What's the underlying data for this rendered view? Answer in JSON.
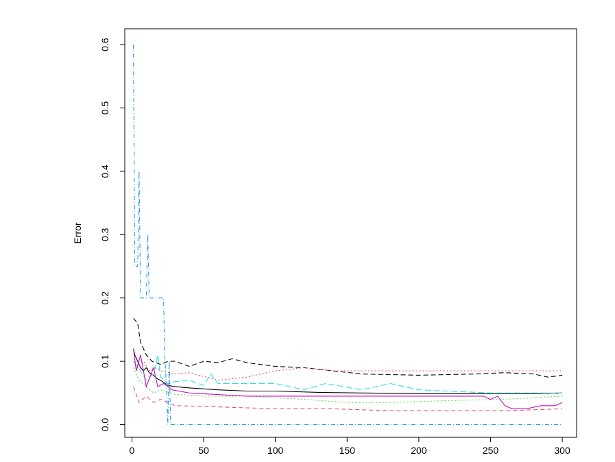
{
  "chart_data": {
    "type": "line",
    "title": "",
    "xlabel": "",
    "ylabel": "Error",
    "xlim": [
      -5,
      310
    ],
    "ylim": [
      -0.02,
      0.625
    ],
    "xticks": [
      0,
      50,
      100,
      150,
      200,
      250,
      300
    ],
    "yticks": [
      0.0,
      0.1,
      0.2,
      0.3,
      0.4,
      0.5,
      0.6
    ],
    "x_tick_labels": [
      "0",
      "50",
      "100",
      "150",
      "200",
      "250",
      "300"
    ],
    "y_tick_labels": [
      "0.0",
      "0.1",
      "0.2",
      "0.3",
      "0.4",
      "0.5",
      "0.6"
    ],
    "grid": false,
    "legend": "none",
    "series": [
      {
        "color": "#000000",
        "dash": "",
        "points": [
          [
            1,
            0.12
          ],
          [
            2,
            0.11
          ],
          [
            4,
            0.1
          ],
          [
            6,
            0.09
          ],
          [
            8,
            0.085
          ],
          [
            10,
            0.09
          ],
          [
            12,
            0.082
          ],
          [
            15,
            0.078
          ],
          [
            18,
            0.072
          ],
          [
            20,
            0.07
          ],
          [
            25,
            0.062
          ],
          [
            30,
            0.06
          ],
          [
            40,
            0.058
          ],
          [
            60,
            0.055
          ],
          [
            80,
            0.053
          ],
          [
            100,
            0.053
          ],
          [
            130,
            0.051
          ],
          [
            160,
            0.05
          ],
          [
            200,
            0.049
          ],
          [
            250,
            0.049
          ],
          [
            280,
            0.049
          ],
          [
            300,
            0.05
          ]
        ]
      },
      {
        "color": "#000000",
        "dash": "7,4",
        "points": [
          [
            1,
            0.168
          ],
          [
            4,
            0.16
          ],
          [
            6,
            0.13
          ],
          [
            8,
            0.12
          ],
          [
            10,
            0.11
          ],
          [
            14,
            0.1
          ],
          [
            20,
            0.095
          ],
          [
            25,
            0.1
          ],
          [
            30,
            0.1
          ],
          [
            40,
            0.092
          ],
          [
            50,
            0.1
          ],
          [
            60,
            0.098
          ],
          [
            70,
            0.104
          ],
          [
            80,
            0.098
          ],
          [
            100,
            0.092
          ],
          [
            120,
            0.09
          ],
          [
            140,
            0.085
          ],
          [
            160,
            0.08
          ],
          [
            200,
            0.078
          ],
          [
            240,
            0.08
          ],
          [
            260,
            0.082
          ],
          [
            280,
            0.08
          ],
          [
            290,
            0.075
          ],
          [
            300,
            0.078
          ]
        ]
      },
      {
        "color": "#df536b",
        "dash": "2,3",
        "points": [
          [
            1,
            0.1
          ],
          [
            4,
            0.09
          ],
          [
            8,
            0.1
          ],
          [
            12,
            0.085
          ],
          [
            16,
            0.09
          ],
          [
            20,
            0.085
          ],
          [
            30,
            0.08
          ],
          [
            40,
            0.082
          ],
          [
            60,
            0.07
          ],
          [
            80,
            0.075
          ],
          [
            100,
            0.085
          ],
          [
            120,
            0.09
          ],
          [
            140,
            0.085
          ],
          [
            160,
            0.085
          ],
          [
            200,
            0.085
          ],
          [
            240,
            0.085
          ],
          [
            280,
            0.085
          ],
          [
            300,
            0.085
          ]
        ]
      },
      {
        "color": "#df536b",
        "dash": "6,4",
        "points": [
          [
            1,
            0.06
          ],
          [
            5,
            0.035
          ],
          [
            10,
            0.045
          ],
          [
            15,
            0.035
          ],
          [
            20,
            0.04
          ],
          [
            30,
            0.03
          ],
          [
            60,
            0.028
          ],
          [
            100,
            0.025
          ],
          [
            140,
            0.025
          ],
          [
            180,
            0.022
          ],
          [
            220,
            0.022
          ],
          [
            260,
            0.022
          ],
          [
            300,
            0.025
          ]
        ]
      },
      {
        "color": "#61d04f",
        "dash": "2,3",
        "points": [
          [
            1,
            0.09
          ],
          [
            5,
            0.07
          ],
          [
            10,
            0.06
          ],
          [
            15,
            0.05
          ],
          [
            20,
            0.055
          ],
          [
            30,
            0.048
          ],
          [
            50,
            0.045
          ],
          [
            80,
            0.045
          ],
          [
            120,
            0.04
          ],
          [
            150,
            0.035
          ],
          [
            180,
            0.035
          ],
          [
            220,
            0.038
          ],
          [
            260,
            0.04
          ],
          [
            300,
            0.045
          ]
        ]
      },
      {
        "color": "#28e2e5",
        "dash": "9,4",
        "points": [
          [
            1,
            0.1
          ],
          [
            6,
            0.085
          ],
          [
            10,
            0.07
          ],
          [
            15,
            0.08
          ],
          [
            18,
            0.11
          ],
          [
            20,
            0.075
          ],
          [
            25,
            0.065
          ],
          [
            30,
            0.068
          ],
          [
            40,
            0.07
          ],
          [
            50,
            0.062
          ],
          [
            55,
            0.08
          ],
          [
            60,
            0.065
          ],
          [
            80,
            0.065
          ],
          [
            100,
            0.065
          ],
          [
            120,
            0.055
          ],
          [
            135,
            0.065
          ],
          [
            160,
            0.055
          ],
          [
            180,
            0.065
          ],
          [
            200,
            0.055
          ],
          [
            250,
            0.05
          ],
          [
            300,
            0.05
          ]
        ]
      },
      {
        "color": "#cd0bbc",
        "dash": "",
        "points": [
          [
            1,
            0.12
          ],
          [
            3,
            0.085
          ],
          [
            6,
            0.11
          ],
          [
            10,
            0.06
          ],
          [
            15,
            0.09
          ],
          [
            18,
            0.06
          ],
          [
            22,
            0.065
          ],
          [
            28,
            0.055
          ],
          [
            40,
            0.05
          ],
          [
            80,
            0.045
          ],
          [
            120,
            0.045
          ],
          [
            160,
            0.045
          ],
          [
            200,
            0.045
          ],
          [
            245,
            0.045
          ],
          [
            250,
            0.04
          ],
          [
            255,
            0.045
          ],
          [
            260,
            0.03
          ],
          [
            265,
            0.025
          ],
          [
            275,
            0.025
          ],
          [
            285,
            0.03
          ],
          [
            295,
            0.03
          ],
          [
            300,
            0.035
          ]
        ]
      },
      {
        "color": "#2297e6",
        "dash": "6,3,1,3",
        "points": [
          [
            1,
            0.6
          ],
          [
            2,
            0.25
          ],
          [
            4,
            0.25
          ],
          [
            5,
            0.4
          ],
          [
            6,
            0.2
          ],
          [
            10,
            0.2
          ],
          [
            11,
            0.3
          ],
          [
            12,
            0.2
          ],
          [
            22,
            0.2
          ],
          [
            23,
            0.1
          ],
          [
            24,
            0.065
          ],
          [
            25,
            0.0
          ],
          [
            26,
            0.1
          ],
          [
            27,
            0.0
          ],
          [
            100,
            0.0
          ],
          [
            200,
            0.0
          ],
          [
            300,
            0.0
          ]
        ]
      }
    ]
  }
}
